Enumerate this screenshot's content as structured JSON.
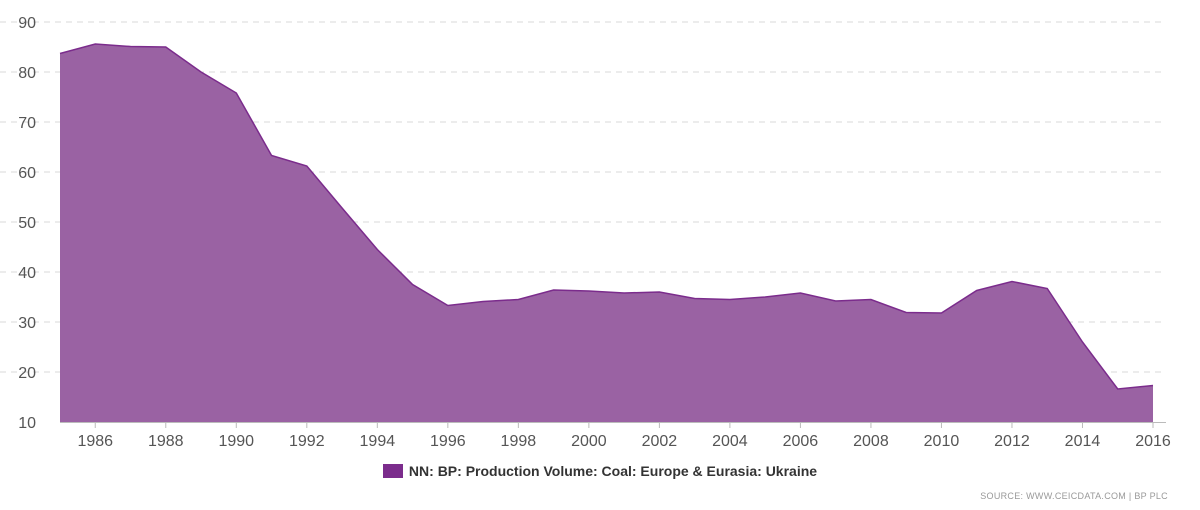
{
  "chart_data": {
    "type": "area",
    "title": "",
    "xlabel": "",
    "ylabel": "",
    "x": [
      1985,
      1986,
      1987,
      1988,
      1989,
      1990,
      1991,
      1992,
      1993,
      1994,
      1995,
      1996,
      1997,
      1998,
      1999,
      2000,
      2001,
      2002,
      2003,
      2004,
      2005,
      2006,
      2007,
      2008,
      2009,
      2010,
      2011,
      2012,
      2013,
      2014,
      2015,
      2016
    ],
    "series": [
      {
        "name": "NN: BP: Production Volume: Coal: Europe & Eurasia: Ukraine",
        "color": "#7B2C8C",
        "fill": "#9A62A3",
        "values": [
          83.7,
          85.6,
          85.1,
          85.0,
          80.0,
          75.8,
          63.3,
          61.2,
          52.8,
          44.5,
          37.5,
          33.3,
          34.1,
          34.5,
          36.4,
          36.2,
          35.8,
          36.0,
          34.7,
          34.5,
          35.0,
          35.8,
          34.2,
          34.5,
          31.9,
          31.8,
          36.3,
          38.1,
          36.7,
          26.0,
          16.6,
          17.3
        ]
      }
    ],
    "xticks": [
      "1986",
      "1988",
      "1990",
      "1992",
      "1994",
      "1996",
      "1998",
      "2000",
      "2002",
      "2004",
      "2006",
      "2008",
      "2010",
      "2012",
      "2014",
      "2016"
    ],
    "yticks": [
      "10",
      "20",
      "30",
      "40",
      "50",
      "60",
      "70",
      "80",
      "90"
    ],
    "xlim": [
      1985,
      2016
    ],
    "ylim": [
      10,
      90
    ],
    "grid": true,
    "legend_position": "bottom-center"
  },
  "legend": {
    "label": "NN: BP: Production Volume: Coal: Europe & Eurasia: Ukraine"
  },
  "source": "SOURCE: WWW.CEICDATA.COM | BP PLC"
}
